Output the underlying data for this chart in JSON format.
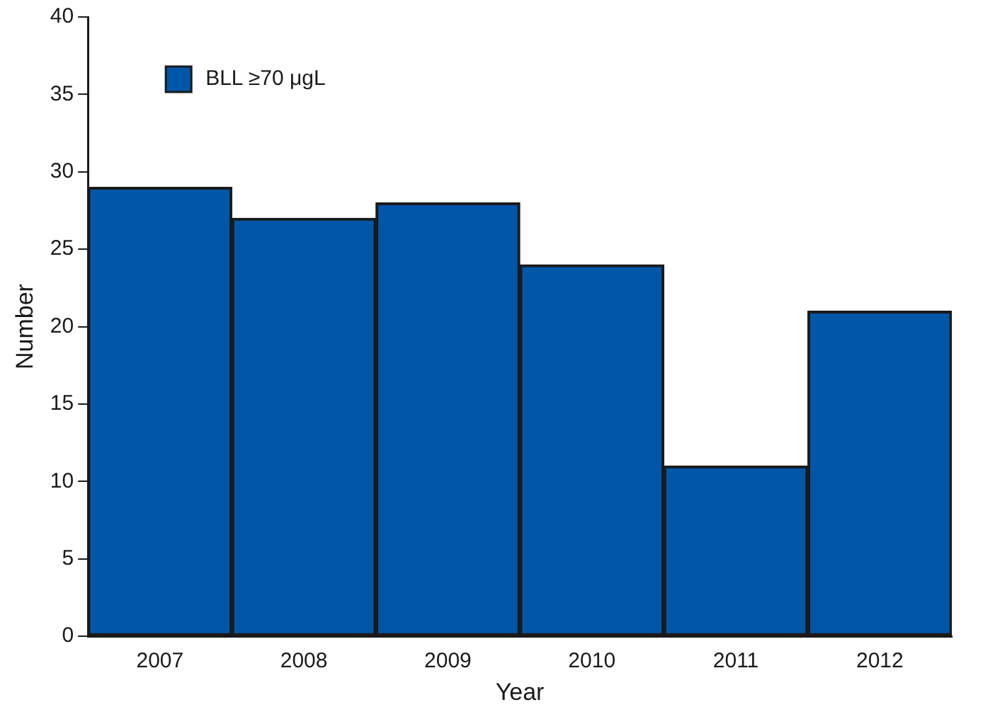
{
  "chart_data": {
    "type": "bar",
    "xlabel": "Year",
    "ylabel": "Number",
    "categories": [
      "2007",
      "2008",
      "2009",
      "2010",
      "2011",
      "2012"
    ],
    "series": [
      {
        "name": "BLL ≥70 μgL",
        "color": "#0057a8",
        "values": [
          29,
          27,
          28,
          24,
          11,
          21
        ]
      }
    ],
    "ylim": [
      0,
      40
    ],
    "yticks": [
      0,
      5,
      10,
      15,
      20,
      25,
      30,
      35,
      40
    ],
    "grid": false,
    "legend": "top left"
  }
}
